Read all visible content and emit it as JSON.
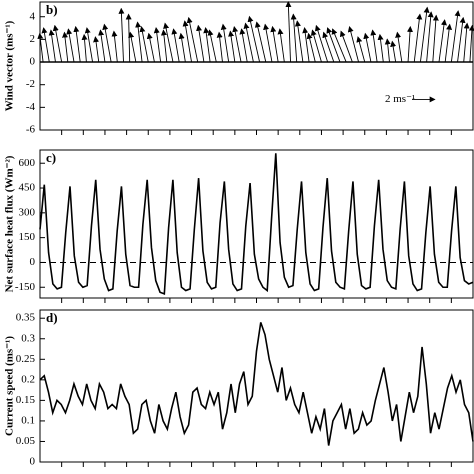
{
  "chart_data": [
    {
      "type": "quiver",
      "panel_label": "b)",
      "ylabel": "Wind vector (ms⁻¹)",
      "ylim": [
        -6,
        5.3
      ],
      "yticks": [
        -6,
        -4,
        -2,
        0,
        2,
        4
      ],
      "scale_label": "2 ms⁻¹",
      "color": "#000000",
      "u": [
        -0.3,
        -0.5,
        -0.4,
        -0.6,
        -0.3,
        -0.5,
        -0.4,
        -0.2,
        -0.5,
        -0.3,
        -0.4,
        -0.6,
        -0.3,
        -0.2,
        -0.1,
        -0.5,
        -0.4,
        -0.6,
        -0.5,
        -0.4,
        -0.3,
        -0.7,
        -0.5,
        -0.4,
        -0.6,
        -0.8,
        -0.5,
        -0.4,
        -0.6,
        -0.3,
        -0.5,
        -0.4,
        -0.6,
        -0.5,
        -0.7,
        -0.9,
        -0.8,
        -0.6,
        -0.5,
        -0.4,
        -0.2,
        -0.3,
        -0.5,
        -0.4,
        -0.6,
        -0.8,
        -1.0,
        -0.9,
        -1.1,
        -1.2,
        -1.0,
        -0.8,
        -0.6,
        -0.5,
        -0.4,
        -0.3,
        -0.2,
        -0.3,
        -0.4,
        0.2,
        0.5,
        0.6,
        0.4,
        0.3,
        0.5,
        0.4,
        0.6,
        0.5,
        0.3,
        0.2
      ],
      "v": [
        2.5,
        3,
        2.8,
        3.2,
        2.6,
        2.9,
        3.1,
        2.4,
        3,
        2.2,
        2.8,
        3.3,
        2.7,
        4.7,
        4.2,
        2.6,
        3.5,
        3.1,
        2.5,
        3,
        2.8,
        3.4,
        2.9,
        2.5,
        3.6,
        3.9,
        3.2,
        3,
        2.8,
        2.6,
        3.3,
        2.7,
        3.1,
        2.9,
        3.4,
        4,
        3.5,
        3.3,
        3.1,
        2.9,
        5.3,
        4.2,
        3.6,
        3,
        2.5,
        2.8,
        3.2,
        2.6,
        3,
        2.9,
        2.7,
        3.1,
        2.2,
        2.5,
        2.8,
        2.4,
        2.0,
        1.8,
        2.6,
        3.1,
        4.2,
        4.8,
        4.4,
        4.1,
        3.7,
        3.3,
        4.5,
        3.9,
        3.4,
        3.2
      ]
    },
    {
      "type": "line",
      "panel_label": "c)",
      "ylabel": "Net surface heat flux (Wm⁻²)",
      "ylim": [
        -215,
        680
      ],
      "yticks": [
        -150,
        0,
        150,
        300,
        450,
        600
      ],
      "reference_line": 0,
      "color": "#000000",
      "values": [
        200,
        470,
        60,
        -130,
        -160,
        -150,
        180,
        460,
        40,
        -120,
        -150,
        -140,
        220,
        500,
        80,
        -100,
        -170,
        -160,
        190,
        460,
        50,
        -140,
        -150,
        -150,
        230,
        500,
        90,
        -110,
        -180,
        -190,
        210,
        500,
        60,
        -150,
        -170,
        -160,
        200,
        510,
        70,
        -120,
        -160,
        -150,
        240,
        490,
        80,
        -130,
        -170,
        -160,
        220,
        480,
        50,
        -100,
        -150,
        -170,
        260,
        660,
        120,
        -90,
        -150,
        -140,
        200,
        490,
        60,
        -130,
        -170,
        -160,
        210,
        510,
        70,
        -120,
        -150,
        -160,
        190,
        490,
        50,
        -140,
        -160,
        -150,
        220,
        500,
        80,
        -110,
        -150,
        -160,
        200,
        490,
        40,
        -130,
        -170,
        -160,
        180,
        460,
        50,
        -120,
        -150,
        -150,
        190,
        460,
        30,
        -110,
        -130,
        -120
      ]
    },
    {
      "type": "line",
      "panel_label": "d)",
      "ylabel": "Current speed (ms⁻¹)",
      "ylim": [
        0,
        0.37
      ],
      "yticks": [
        0,
        0.05,
        0.1,
        0.15,
        0.2,
        0.25,
        0.3,
        0.35
      ],
      "color": "#000000",
      "values": [
        0.2,
        0.21,
        0.17,
        0.12,
        0.15,
        0.14,
        0.12,
        0.15,
        0.19,
        0.16,
        0.14,
        0.19,
        0.15,
        0.13,
        0.19,
        0.17,
        0.13,
        0.14,
        0.13,
        0.19,
        0.16,
        0.14,
        0.07,
        0.08,
        0.14,
        0.15,
        0.1,
        0.07,
        0.14,
        0.1,
        0.08,
        0.13,
        0.17,
        0.11,
        0.07,
        0.09,
        0.17,
        0.18,
        0.14,
        0.13,
        0.17,
        0.14,
        0.17,
        0.08,
        0.12,
        0.19,
        0.12,
        0.19,
        0.22,
        0.14,
        0.16,
        0.27,
        0.34,
        0.31,
        0.25,
        0.21,
        0.17,
        0.23,
        0.15,
        0.18,
        0.14,
        0.12,
        0.17,
        0.12,
        0.07,
        0.11,
        0.08,
        0.13,
        0.04,
        0.1,
        0.12,
        0.14,
        0.08,
        0.13,
        0.07,
        0.08,
        0.12,
        0.09,
        0.1,
        0.15,
        0.19,
        0.23,
        0.17,
        0.1,
        0.14,
        0.05,
        0.11,
        0.17,
        0.12,
        0.16,
        0.28,
        0.19,
        0.07,
        0.12,
        0.08,
        0.13,
        0.18,
        0.21,
        0.17,
        0.2,
        0.14,
        0.12,
        0.05
      ]
    }
  ]
}
